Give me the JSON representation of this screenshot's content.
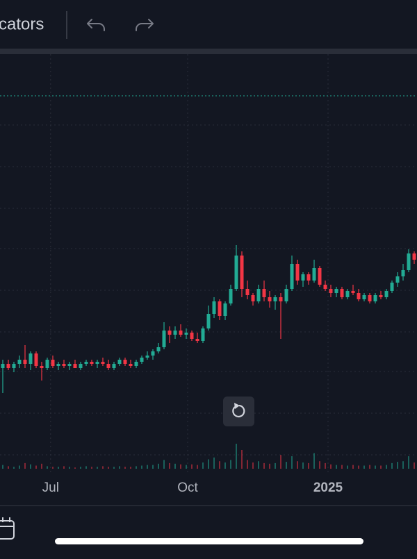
{
  "top_bar": {
    "label": "cators"
  },
  "chart_data": {
    "type": "candlestick",
    "up_color": "#22ab94",
    "down_color": "#f23645",
    "ylim": [
      0,
      100
    ],
    "volume_ylim": [
      0,
      50
    ],
    "xticks": [
      {
        "value": 8.6,
        "label": "Jul"
      },
      {
        "value": 33.25,
        "label": "Oct"
      },
      {
        "value": 58.5,
        "label": "2025"
      }
    ],
    "grid": true,
    "candles": [
      [
        25,
        27,
        19,
        26
      ],
      [
        26,
        27,
        24.5,
        25
      ],
      [
        25,
        26.5,
        24,
        26
      ],
      [
        26,
        28,
        25,
        27
      ],
      [
        27,
        30.5,
        25,
        26
      ],
      [
        26,
        29,
        24.5,
        28.5
      ],
      [
        28.5,
        29,
        25,
        25.5
      ],
      [
        25.5,
        26.5,
        22,
        25
      ],
      [
        25,
        27.5,
        24.5,
        27
      ],
      [
        27,
        28,
        25,
        25.5
      ],
      [
        25.5,
        26.5,
        24.5,
        26
      ],
      [
        26,
        27,
        25,
        25.5
      ],
      [
        25.5,
        26.5,
        24.5,
        26
      ],
      [
        26,
        27,
        25,
        25
      ],
      [
        25,
        26.5,
        24.5,
        26
      ],
      [
        26,
        27,
        25.5,
        26.5
      ],
      [
        26.5,
        27,
        25.5,
        26
      ],
      [
        26,
        27,
        25,
        26.5
      ],
      [
        26.5,
        27.5,
        25.5,
        26
      ],
      [
        26,
        27,
        24.5,
        25
      ],
      [
        25,
        26.5,
        24.5,
        26
      ],
      [
        26,
        27.5,
        25.5,
        27
      ],
      [
        27,
        27.5,
        25.5,
        26
      ],
      [
        26,
        27,
        25,
        25.5
      ],
      [
        25.5,
        27,
        25,
        26.5
      ],
      [
        26.5,
        28,
        26,
        27.5
      ],
      [
        27.5,
        29,
        27,
        28
      ],
      [
        28,
        29.5,
        27,
        29
      ],
      [
        29,
        31,
        28.5,
        30
      ],
      [
        30,
        36,
        29.5,
        34
      ],
      [
        34,
        35,
        31,
        33
      ],
      [
        33,
        35,
        32,
        34
      ],
      [
        34,
        35.5,
        32.5,
        33
      ],
      [
        33,
        34.5,
        32,
        33.5
      ],
      [
        33.5,
        34,
        31.5,
        32
      ],
      [
        32,
        33.5,
        31,
        31.5
      ],
      [
        31.5,
        35,
        31,
        34.5
      ],
      [
        34.5,
        40,
        34,
        38
      ],
      [
        38,
        42,
        37,
        41
      ],
      [
        41,
        41.5,
        36.5,
        37.5
      ],
      [
        37.5,
        41,
        36.5,
        40.5
      ],
      [
        40.5,
        45,
        40,
        44
      ],
      [
        44,
        54.5,
        43.5,
        52
      ],
      [
        52,
        53,
        42,
        44
      ],
      [
        44,
        46,
        41.5,
        42.5
      ],
      [
        42.5,
        43,
        40,
        41
      ],
      [
        41,
        45,
        40.5,
        44
      ],
      [
        44,
        46,
        41,
        42
      ],
      [
        42,
        43.5,
        39.5,
        41
      ],
      [
        41,
        42.5,
        39,
        42
      ],
      [
        42,
        43,
        32,
        41
      ],
      [
        41,
        45,
        40.5,
        44
      ],
      [
        44,
        52,
        43.5,
        50
      ],
      [
        50,
        51,
        45,
        46
      ],
      [
        46,
        48,
        44.5,
        47.5
      ],
      [
        47.5,
        48,
        45,
        46
      ],
      [
        46,
        51,
        45.5,
        49
      ],
      [
        49,
        49.5,
        44.5,
        45
      ],
      [
        45,
        46,
        43.5,
        44
      ],
      [
        44,
        45,
        42,
        43
      ],
      [
        43,
        44.5,
        42,
        44
      ],
      [
        44,
        44.5,
        41.5,
        42
      ],
      [
        42,
        44,
        41.5,
        43.5
      ],
      [
        43.5,
        45,
        42.5,
        43
      ],
      [
        43,
        44,
        41,
        41.5
      ],
      [
        41.5,
        43,
        41,
        42.5
      ],
      [
        42.5,
        43,
        40.5,
        41
      ],
      [
        41,
        43,
        40.5,
        42.5
      ],
      [
        42.5,
        43.5,
        41.5,
        42
      ],
      [
        42,
        44,
        41.5,
        43.5
      ],
      [
        43.5,
        46,
        43,
        45.5
      ],
      [
        45.5,
        48,
        44.5,
        47
      ],
      [
        47,
        50,
        46,
        48.5
      ],
      [
        48.5,
        53.5,
        48,
        52.5
      ],
      [
        52.5,
        53,
        50,
        51
      ]
    ],
    "volume": [
      6,
      4,
      3,
      5,
      9,
      7,
      5,
      8,
      4,
      3,
      3,
      4,
      3,
      2,
      3,
      4,
      3,
      3,
      4,
      3,
      3,
      4,
      3,
      3,
      4,
      5,
      6,
      6,
      8,
      14,
      9,
      8,
      7,
      6,
      7,
      6,
      10,
      15,
      18,
      12,
      10,
      14,
      40,
      30,
      14,
      10,
      12,
      9,
      8,
      9,
      22,
      11,
      20,
      12,
      10,
      9,
      25,
      12,
      9,
      7,
      6,
      6,
      5,
      6,
      5,
      5,
      6,
      5,
      5,
      6,
      9,
      11,
      12,
      20,
      10
    ]
  }
}
